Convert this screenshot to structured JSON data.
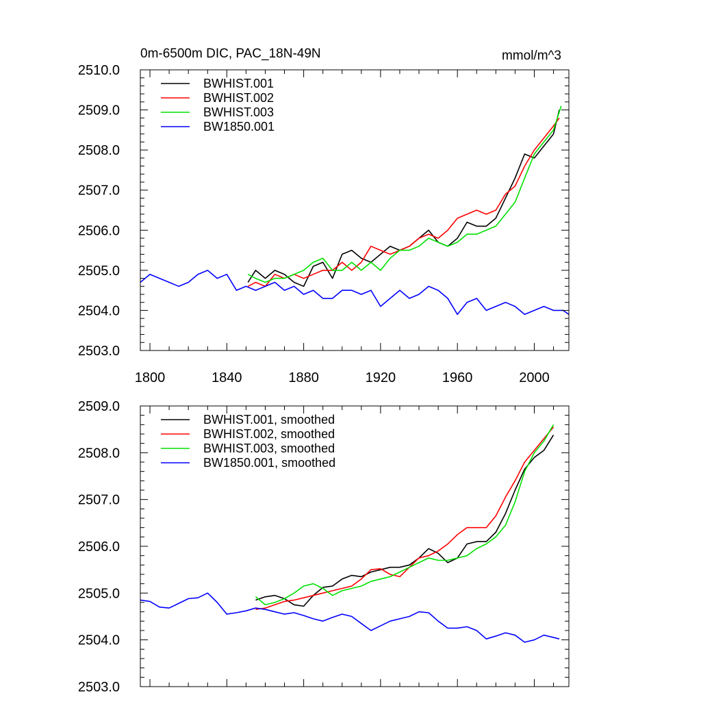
{
  "chart_data": [
    {
      "type": "line",
      "title": "0m-6500m DIC, PAC_18N-49N",
      "units": "mmol/m^3",
      "xlabel": "",
      "ylabel": "",
      "xlim": [
        1795,
        2018
      ],
      "ylim": [
        2503.0,
        2510.0
      ],
      "xticks": [
        1800,
        1840,
        1880,
        1920,
        1960,
        2000
      ],
      "xtick_labels": [
        "1800",
        "1840",
        "1880",
        "1920",
        "1960",
        "2000"
      ],
      "yticks": [
        2503.0,
        2504.0,
        2505.0,
        2506.0,
        2507.0,
        2508.0,
        2509.0,
        2510.0
      ],
      "ytick_labels": [
        "2503.0",
        "2504.0",
        "2505.0",
        "2506.0",
        "2507.0",
        "2508.0",
        "2509.0",
        "2510.0"
      ],
      "legend_position": "top-left",
      "series": [
        {
          "name": "BWHIST.001",
          "color": "#000000",
          "x": [
            1851,
            1855,
            1860,
            1865,
            1870,
            1875,
            1880,
            1885,
            1890,
            1895,
            1900,
            1905,
            1910,
            1915,
            1920,
            1925,
            1930,
            1935,
            1940,
            1945,
            1950,
            1955,
            1960,
            1965,
            1970,
            1975,
            1980,
            1985,
            1990,
            1995,
            2000,
            2005,
            2010,
            2013
          ],
          "values": [
            2504.7,
            2505.0,
            2504.8,
            2505.0,
            2504.9,
            2504.7,
            2504.6,
            2505.1,
            2505.2,
            2504.8,
            2505.4,
            2505.5,
            2505.3,
            2505.2,
            2505.4,
            2505.6,
            2505.5,
            2505.6,
            2505.8,
            2506.0,
            2505.7,
            2505.6,
            2505.8,
            2506.2,
            2506.1,
            2506.1,
            2506.3,
            2506.8,
            2507.3,
            2507.9,
            2507.8,
            2508.1,
            2508.4,
            2509.0
          ]
        },
        {
          "name": "BWHIST.002",
          "color": "#ff0000",
          "x": [
            1851,
            1855,
            1860,
            1865,
            1870,
            1875,
            1880,
            1885,
            1890,
            1895,
            1900,
            1905,
            1910,
            1915,
            1920,
            1925,
            1930,
            1935,
            1940,
            1945,
            1950,
            1955,
            1960,
            1965,
            1970,
            1975,
            1980,
            1985,
            1990,
            1995,
            2000,
            2005,
            2010,
            2013
          ],
          "values": [
            2504.6,
            2504.7,
            2504.6,
            2504.9,
            2504.8,
            2504.9,
            2504.8,
            2504.9,
            2505.0,
            2505.0,
            2505.2,
            2505.0,
            2505.2,
            2505.6,
            2505.5,
            2505.4,
            2505.5,
            2505.6,
            2505.8,
            2505.9,
            2505.8,
            2506.0,
            2506.3,
            2506.4,
            2506.5,
            2506.4,
            2506.5,
            2506.9,
            2507.1,
            2507.6,
            2508.0,
            2508.3,
            2508.6,
            2508.8
          ]
        },
        {
          "name": "BWHIST.003",
          "color": "#00e000",
          "x": [
            1851,
            1855,
            1860,
            1865,
            1870,
            1875,
            1880,
            1885,
            1890,
            1895,
            1900,
            1905,
            1910,
            1915,
            1920,
            1925,
            1930,
            1935,
            1940,
            1945,
            1950,
            1955,
            1960,
            1965,
            1970,
            1975,
            1980,
            1985,
            1990,
            1995,
            2000,
            2005,
            2010,
            2014
          ],
          "values": [
            2504.9,
            2504.8,
            2504.7,
            2504.8,
            2504.8,
            2504.9,
            2505.0,
            2505.2,
            2505.3,
            2505.0,
            2505.0,
            2505.2,
            2505.0,
            2505.2,
            2505.0,
            2505.3,
            2505.5,
            2505.5,
            2505.6,
            2505.8,
            2505.7,
            2505.6,
            2505.7,
            2505.9,
            2505.9,
            2506.0,
            2506.1,
            2506.4,
            2506.7,
            2507.3,
            2507.9,
            2508.2,
            2508.5,
            2509.1
          ]
        },
        {
          "name": "BW1850.001",
          "color": "#0000ff",
          "x": [
            1795,
            1800,
            1805,
            1810,
            1815,
            1820,
            1825,
            1830,
            1835,
            1840,
            1845,
            1850,
            1855,
            1860,
            1865,
            1870,
            1875,
            1880,
            1885,
            1890,
            1895,
            1900,
            1905,
            1910,
            1915,
            1920,
            1925,
            1930,
            1935,
            1940,
            1945,
            1950,
            1955,
            1960,
            1965,
            1970,
            1975,
            1980,
            1985,
            1990,
            1995,
            2000,
            2005,
            2010,
            2015,
            2018
          ],
          "values": [
            2504.7,
            2504.9,
            2504.8,
            2504.7,
            2504.6,
            2504.7,
            2504.9,
            2505.0,
            2504.8,
            2504.9,
            2504.5,
            2504.6,
            2504.5,
            2504.6,
            2504.7,
            2504.5,
            2504.6,
            2504.4,
            2504.5,
            2504.3,
            2504.3,
            2504.5,
            2504.5,
            2504.4,
            2504.5,
            2504.1,
            2504.3,
            2504.5,
            2504.3,
            2504.4,
            2504.6,
            2504.5,
            2504.3,
            2503.9,
            2504.2,
            2504.3,
            2504.0,
            2504.1,
            2504.2,
            2504.1,
            2503.9,
            2504.0,
            2504.1,
            2504.0,
            2504.0,
            2503.9
          ]
        }
      ]
    },
    {
      "type": "line",
      "title": "",
      "xlabel": "",
      "ylabel": "",
      "xlim": [
        1795,
        2018
      ],
      "ylim": [
        2503.0,
        2509.0
      ],
      "xticks": [
        1800,
        1840,
        1880,
        1920,
        1960,
        2000
      ],
      "yticks": [
        2503.0,
        2504.0,
        2505.0,
        2506.0,
        2507.0,
        2508.0,
        2509.0
      ],
      "ytick_labels": [
        "2503.0",
        "2504.0",
        "2505.0",
        "2506.0",
        "2507.0",
        "2508.0",
        "2509.0"
      ],
      "legend_position": "top-left",
      "series": [
        {
          "name": "BWHIST.001, smoothed",
          "color": "#000000",
          "x": [
            1855,
            1860,
            1865,
            1870,
            1875,
            1880,
            1885,
            1890,
            1895,
            1900,
            1905,
            1910,
            1915,
            1920,
            1925,
            1930,
            1935,
            1940,
            1945,
            1950,
            1955,
            1960,
            1965,
            1970,
            1975,
            1980,
            1985,
            1990,
            1995,
            2000,
            2005,
            2010
          ],
          "values": [
            2504.85,
            2504.92,
            2504.95,
            2504.88,
            2504.75,
            2504.72,
            2504.95,
            2505.12,
            2505.15,
            2505.3,
            2505.38,
            2505.35,
            2505.45,
            2505.5,
            2505.55,
            2505.55,
            2505.6,
            2505.75,
            2505.95,
            2505.85,
            2505.65,
            2505.75,
            2506.05,
            2506.1,
            2506.1,
            2506.3,
            2506.7,
            2507.2,
            2507.65,
            2507.9,
            2508.05,
            2508.38
          ]
        },
        {
          "name": "BWHIST.002, smoothed",
          "color": "#ff0000",
          "x": [
            1855,
            1860,
            1865,
            1870,
            1875,
            1880,
            1885,
            1890,
            1895,
            1900,
            1905,
            1910,
            1915,
            1920,
            1925,
            1930,
            1935,
            1940,
            1945,
            1950,
            1955,
            1960,
            1965,
            1970,
            1975,
            1980,
            1985,
            1990,
            1995,
            2000,
            2005,
            2010
          ],
          "values": [
            2504.65,
            2504.68,
            2504.75,
            2504.82,
            2504.85,
            2504.9,
            2504.95,
            2505.0,
            2505.05,
            2505.1,
            2505.15,
            2505.3,
            2505.5,
            2505.52,
            2505.4,
            2505.35,
            2505.55,
            2505.75,
            2505.8,
            2505.9,
            2506.05,
            2506.25,
            2506.4,
            2506.4,
            2506.4,
            2506.65,
            2507.05,
            2507.4,
            2507.8,
            2508.05,
            2508.3,
            2508.55
          ]
        },
        {
          "name": "BWHIST.003, smoothed",
          "color": "#00e000",
          "x": [
            1855,
            1860,
            1865,
            1870,
            1875,
            1880,
            1885,
            1890,
            1895,
            1900,
            1905,
            1910,
            1915,
            1920,
            1925,
            1930,
            1935,
            1940,
            1945,
            1950,
            1955,
            1960,
            1965,
            1970,
            1975,
            1980,
            1985,
            1990,
            1995,
            2000,
            2005,
            2010
          ],
          "values": [
            2504.92,
            2504.75,
            2504.8,
            2504.88,
            2505.0,
            2505.15,
            2505.2,
            2505.1,
            2504.95,
            2505.05,
            2505.1,
            2505.15,
            2505.25,
            2505.3,
            2505.35,
            2505.45,
            2505.55,
            2505.65,
            2505.75,
            2505.7,
            2505.7,
            2505.75,
            2505.8,
            2505.95,
            2506.05,
            2506.2,
            2506.45,
            2506.95,
            2507.6,
            2508.0,
            2508.25,
            2508.6
          ]
        },
        {
          "name": "BW1850.001, smoothed",
          "color": "#0000ff",
          "x": [
            1795,
            1800,
            1805,
            1810,
            1815,
            1820,
            1825,
            1830,
            1835,
            1840,
            1845,
            1850,
            1855,
            1860,
            1865,
            1870,
            1875,
            1880,
            1885,
            1890,
            1895,
            1900,
            1905,
            1910,
            1915,
            1920,
            1925,
            1930,
            1935,
            1940,
            1945,
            1950,
            1955,
            1960,
            1965,
            1970,
            1975,
            1980,
            1985,
            1990,
            1995,
            2000,
            2005,
            2010,
            2013
          ],
          "values": [
            2504.85,
            2504.82,
            2504.7,
            2504.68,
            2504.78,
            2504.88,
            2504.9,
            2505.0,
            2504.8,
            2504.55,
            2504.58,
            2504.62,
            2504.68,
            2504.65,
            2504.6,
            2504.55,
            2504.58,
            2504.52,
            2504.45,
            2504.4,
            2504.48,
            2504.55,
            2504.5,
            2504.35,
            2504.2,
            2504.3,
            2504.4,
            2504.45,
            2504.5,
            2504.6,
            2504.58,
            2504.4,
            2504.25,
            2504.25,
            2504.28,
            2504.2,
            2504.02,
            2504.08,
            2504.15,
            2504.1,
            2503.95,
            2504.0,
            2504.1,
            2504.05,
            2504.02
          ]
        }
      ]
    }
  ]
}
